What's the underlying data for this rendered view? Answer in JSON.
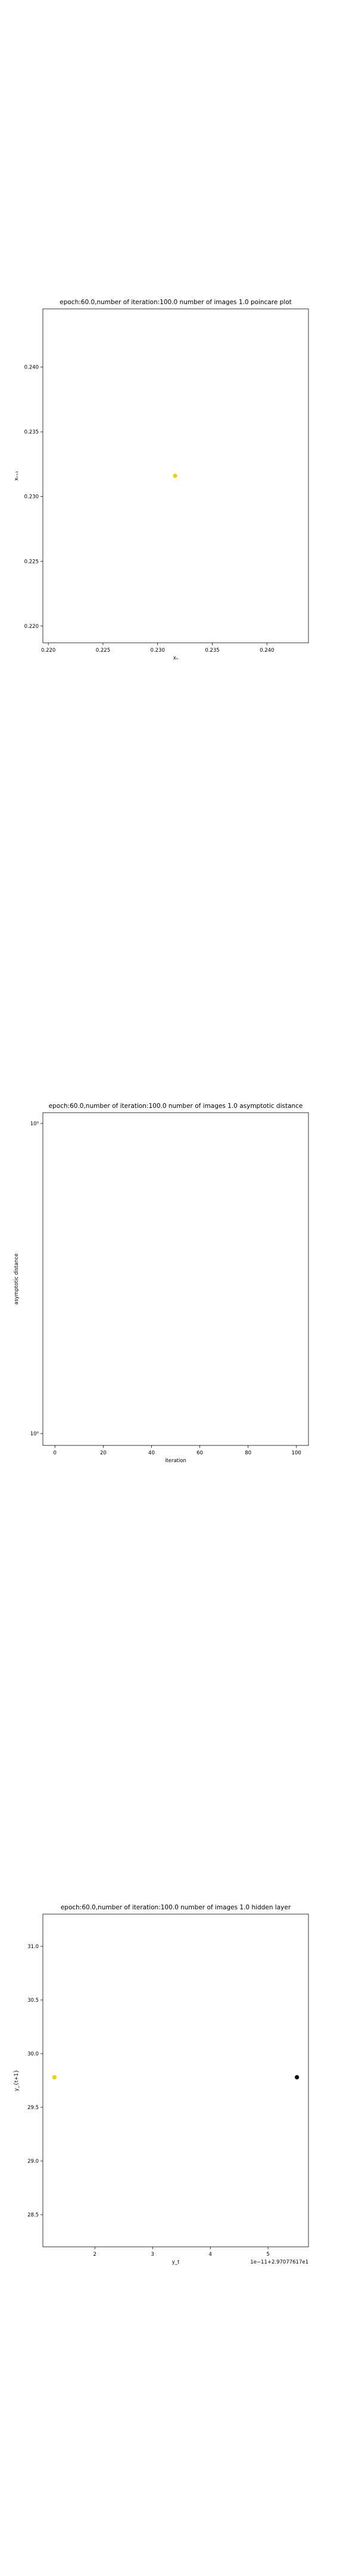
{
  "chart_data": [
    {
      "type": "scatter",
      "title": "epoch:60.0,number of iteration:100.0 number of images 1.0 poincare plot",
      "xlabel": "xₙ",
      "ylabel": "xₙ₊₁",
      "xlim": [
        0.2195,
        0.2438
      ],
      "ylim": [
        0.2187,
        0.2445
      ],
      "x_ticks": [
        0.22,
        0.225,
        0.23,
        0.235,
        0.24
      ],
      "x_tick_labels": [
        "0.220",
        "0.225",
        "0.230",
        "0.235",
        "0.240"
      ],
      "y_ticks": [
        0.22,
        0.225,
        0.23,
        0.235,
        0.24
      ],
      "y_tick_labels": [
        "0.220",
        "0.225",
        "0.230",
        "0.235",
        "0.240"
      ],
      "grid": false,
      "points": [
        {
          "x": 0.2316,
          "y": 0.2316,
          "color": "#f5d000"
        }
      ]
    },
    {
      "type": "line",
      "title": "epoch:60.0,number of iteration:100.0  number of images 1.0 asymptotic distance",
      "xlabel": "iteration",
      "ylabel": "asymptotic distance",
      "xlim": [
        -5,
        105
      ],
      "yscale": "log",
      "x_ticks": [
        0,
        20,
        40,
        60,
        80,
        100
      ],
      "x_tick_labels": [
        "0",
        "20",
        "40",
        "60",
        "80",
        "100"
      ],
      "y_tick_labels": [
        "10⁰",
        "10⁰"
      ],
      "grid": false,
      "series": []
    },
    {
      "type": "scatter",
      "title": "epoch:60.0,number of iteration:100.0  number of images 1.0 hidden layer",
      "xlabel": "y_t",
      "ylabel": "y_{t+1}",
      "xlim": [
        1.1,
        5.7
      ],
      "ylim": [
        28.2,
        31.3
      ],
      "x_ticks": [
        2,
        3,
        4,
        5
      ],
      "x_tick_labels": [
        "2",
        "3",
        "4",
        "5"
      ],
      "y_ticks": [
        28.5,
        29.0,
        29.5,
        30.0,
        30.5,
        31.0
      ],
      "y_tick_labels": [
        "28.5",
        "29.0",
        "29.5",
        "30.0",
        "30.5",
        "31.0"
      ],
      "x_offset_label": "1e−11+2.97077617e1",
      "grid": false,
      "points": [
        {
          "x": 1.3,
          "y": 29.78,
          "color": "#f5d000"
        },
        {
          "x": 5.5,
          "y": 29.78,
          "color": "#000000"
        }
      ]
    }
  ]
}
